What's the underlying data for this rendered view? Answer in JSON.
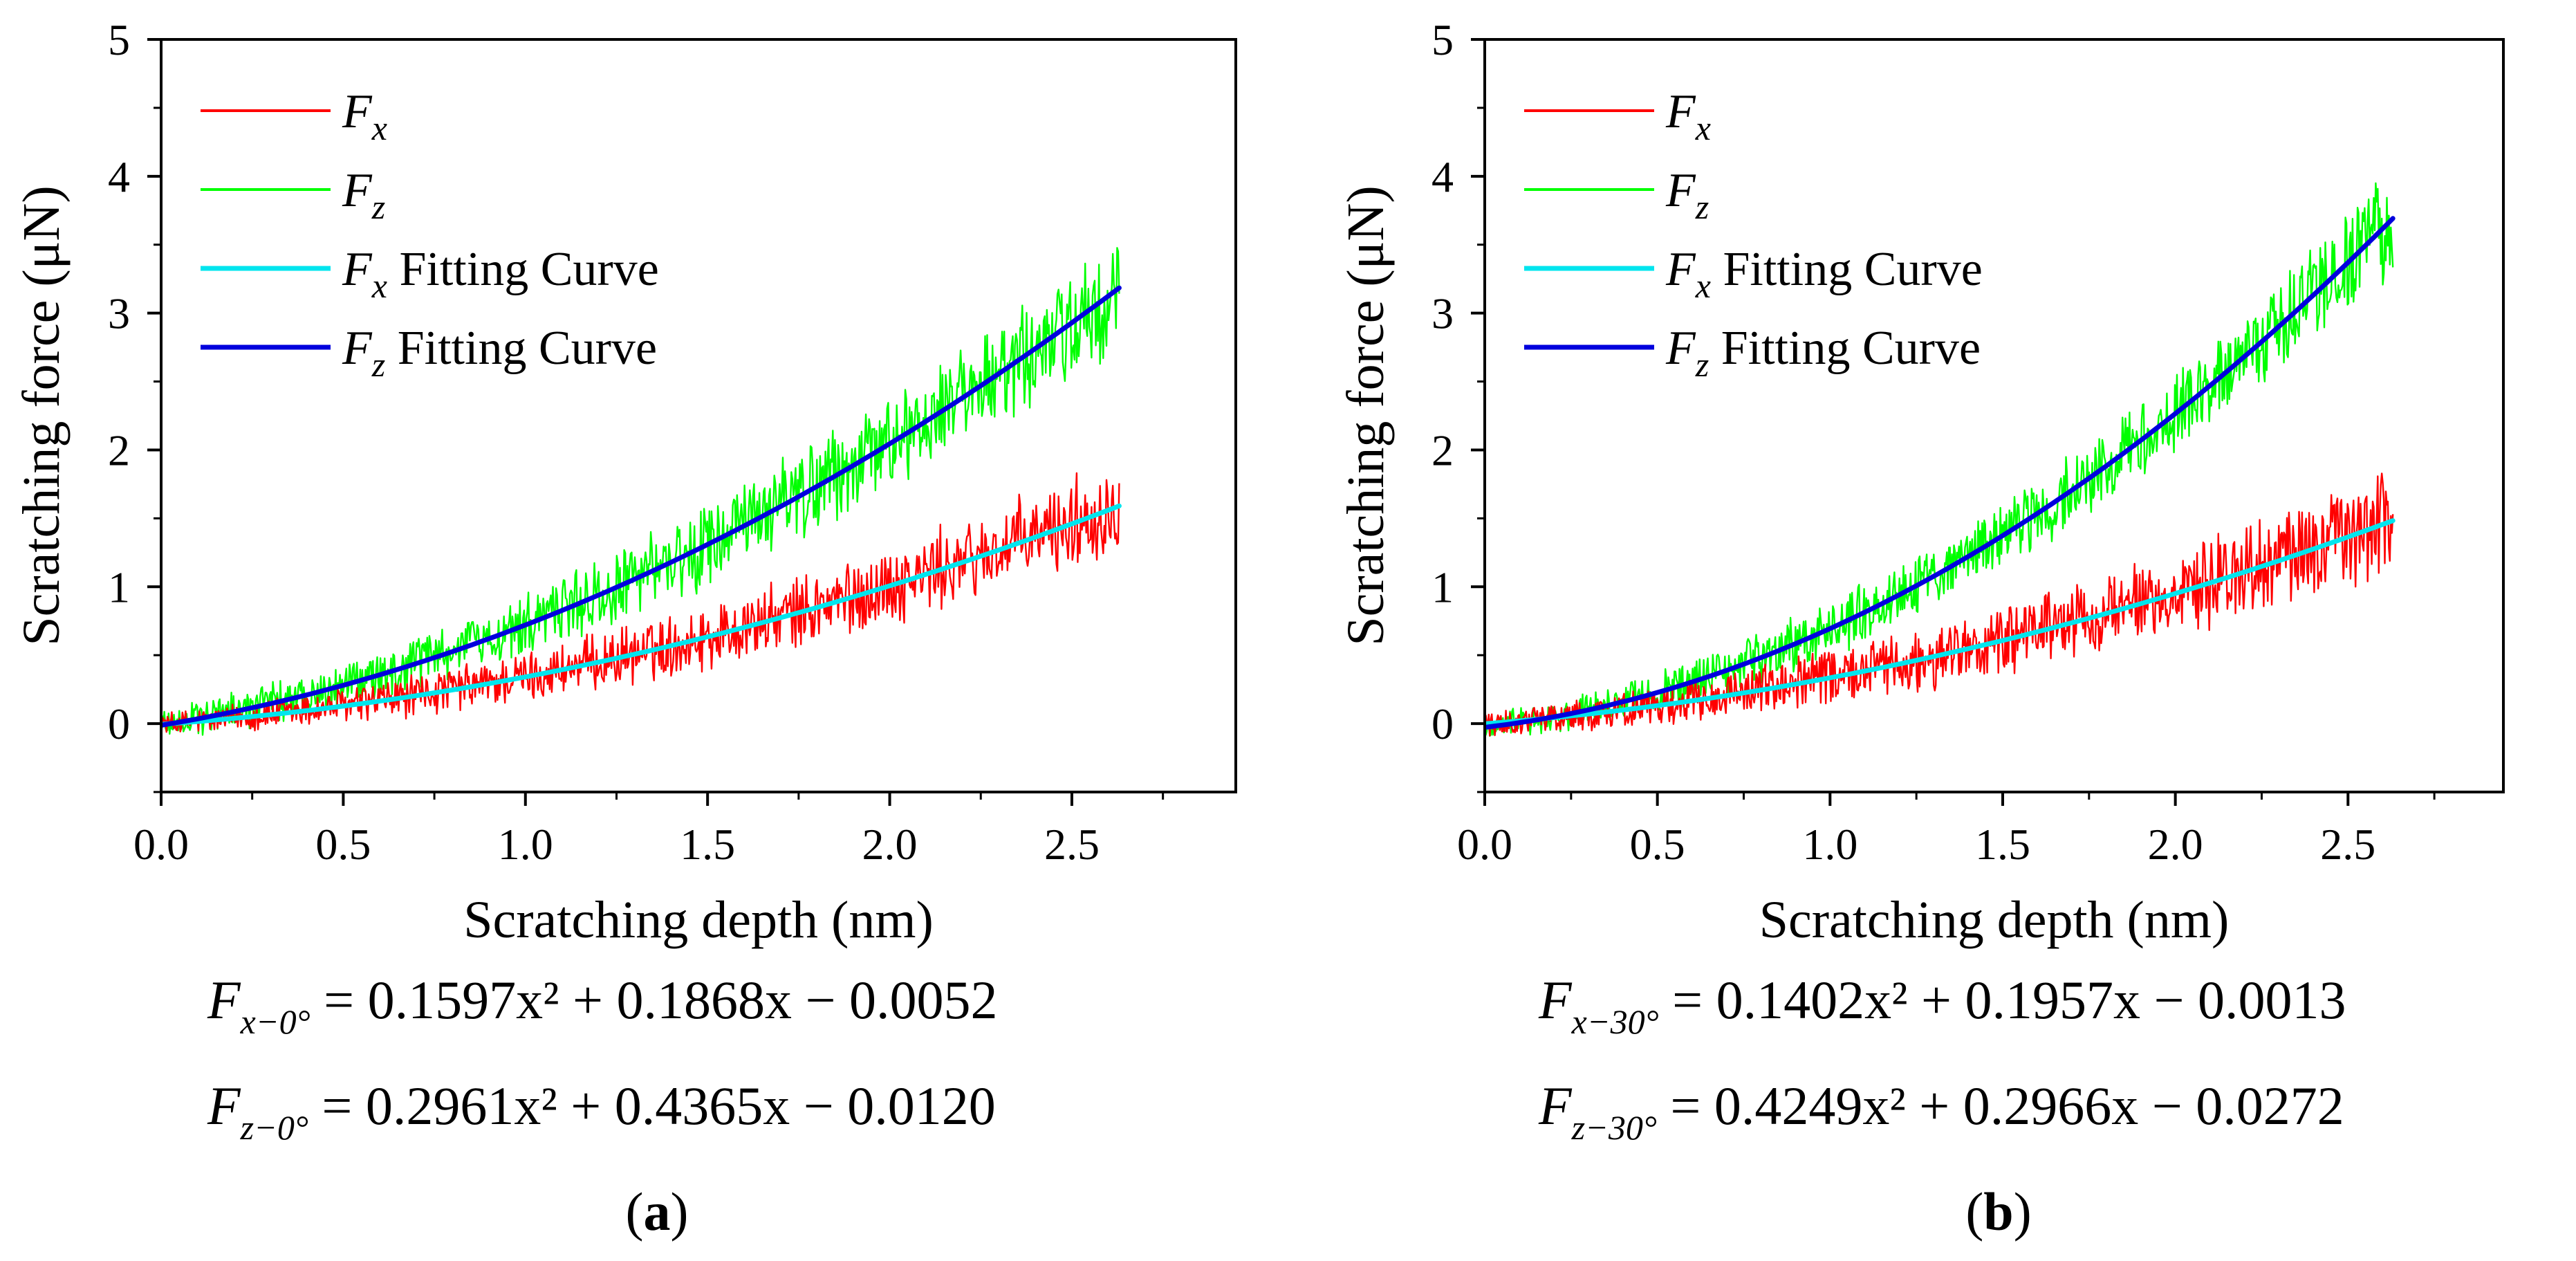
{
  "chart_data": [
    {
      "type": "line",
      "panel_label_open": "(",
      "panel_label": "a",
      "panel_label_close": ")",
      "xlabel": "Scratching depth (nm)",
      "ylabel": "Scratching force  (μN)",
      "xlim": [
        0,
        2.95
      ],
      "ylim": [
        -0.5,
        5
      ],
      "x_ticks": [
        0.0,
        0.5,
        1.0,
        1.5,
        2.0,
        2.5
      ],
      "x_tick_labels": [
        "0.0",
        "0.5",
        "1.0",
        "1.5",
        "2.0",
        "2.5"
      ],
      "y_ticks": [
        0,
        1,
        2,
        3,
        4,
        5
      ],
      "y_tick_labels": [
        "0",
        "1",
        "2",
        "3",
        "4",
        "5"
      ],
      "x_max_data": 2.63,
      "legend_position": "top-left",
      "series": [
        {
          "name": "Fx",
          "symbol": "F",
          "sub": "x",
          "suffix": "",
          "color": "#ff0000",
          "kind": "noisy",
          "coef": [
            0.1597,
            0.1868,
            -0.0052
          ],
          "noise": 0.3
        },
        {
          "name": "Fz",
          "symbol": "F",
          "sub": "z",
          "suffix": "",
          "color": "#00ff00",
          "kind": "noisy",
          "coef": [
            0.2961,
            0.4365,
            -0.012
          ],
          "noise": 0.38
        },
        {
          "name": "Fx Fitting Curve",
          "symbol": "F",
          "sub": "x",
          "suffix": " Fitting Curve",
          "color": "#00e5ee",
          "kind": "fit",
          "coef": [
            0.1597,
            0.1868,
            -0.0052
          ]
        },
        {
          "name": "Fz Fitting Curve",
          "symbol": "F",
          "sub": "z",
          "suffix": " Fitting Curve",
          "color": "#0000dd",
          "kind": "fit",
          "coef": [
            0.2961,
            0.4365,
            -0.012
          ]
        }
      ],
      "equations": [
        {
          "lhs": "F",
          "sub": "x−0°",
          "rhs": "= 0.1597x² + 0.1868x − 0.0052"
        },
        {
          "lhs": "F",
          "sub": "z−0°",
          "rhs": "= 0.2961x² + 0.4365x − 0.0120"
        }
      ]
    },
    {
      "type": "line",
      "panel_label_open": "(",
      "panel_label": "b",
      "panel_label_close": ")",
      "xlabel": "Scratching depth  (nm)",
      "ylabel": "Scratching force  (μN)",
      "xlim": [
        0,
        2.95
      ],
      "ylim": [
        -0.5,
        5
      ],
      "x_ticks": [
        0.0,
        0.5,
        1.0,
        1.5,
        2.0,
        2.5
      ],
      "x_tick_labels": [
        "0.0",
        "0.5",
        "1.0",
        "1.5",
        "2.0",
        "2.5"
      ],
      "y_ticks": [
        0,
        1,
        2,
        3,
        4,
        5
      ],
      "y_tick_labels": [
        "0",
        "1",
        "2",
        "3",
        "4",
        "5"
      ],
      "x_max_data": 2.63,
      "legend_position": "top-left",
      "series": [
        {
          "name": "Fx",
          "symbol": "F",
          "sub": "x",
          "suffix": "",
          "color": "#ff0000",
          "kind": "noisy",
          "coef": [
            0.1402,
            0.1957,
            -0.0013
          ],
          "noise": 0.32
        },
        {
          "name": "Fz",
          "symbol": "F",
          "sub": "z",
          "suffix": "",
          "color": "#00ff00",
          "kind": "noisy",
          "coef": [
            0.4249,
            0.2966,
            -0.0272
          ],
          "noise": 0.32
        },
        {
          "name": "Fx Fitting Curve",
          "symbol": "F",
          "sub": "x",
          "suffix": " Fitting Curve",
          "color": "#00e5ee",
          "kind": "fit",
          "coef": [
            0.1402,
            0.1957,
            -0.0013
          ]
        },
        {
          "name": "Fz Fitting Curve",
          "symbol": "F",
          "sub": "z",
          "suffix": " Fitting Curve",
          "color": "#0000dd",
          "kind": "fit",
          "coef": [
            0.4249,
            0.2966,
            -0.0272
          ]
        }
      ],
      "equations": [
        {
          "lhs": "F",
          "sub": "x−30°",
          "rhs": "= 0.1402x² + 0.1957x − 0.0013"
        },
        {
          "lhs": "F",
          "sub": "z−30°",
          "rhs": "= 0.4249x² + 0.2966x − 0.0272"
        }
      ]
    }
  ]
}
